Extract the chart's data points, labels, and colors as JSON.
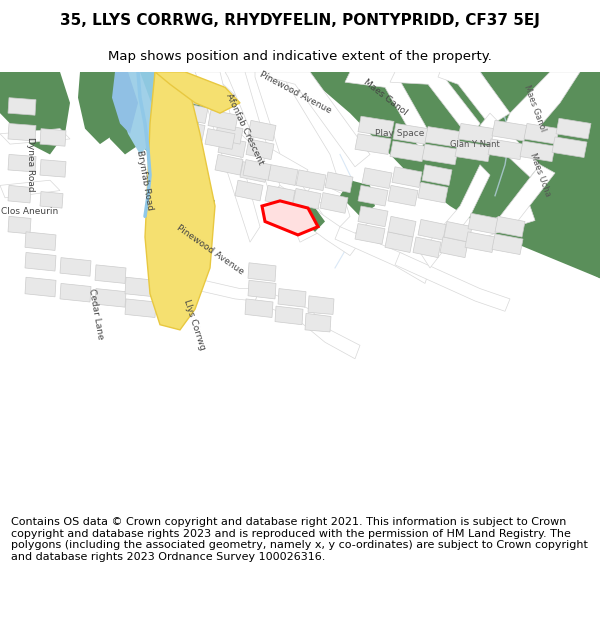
{
  "title": "35, LLYS CORRWG, RHYDYFELIN, PONTYPRIDD, CF37 5EJ",
  "subtitle": "Map shows position and indicative extent of the property.",
  "footer": "Contains OS data © Crown copyright and database right 2021. This information is subject to Crown copyright and database rights 2023 and is reproduced with the permission of HM Land Registry. The polygons (including the associated geometry, namely x, y co-ordinates) are subject to Crown copyright and database rights 2023 Ordnance Survey 100026316.",
  "bg_color": "#ffffff",
  "map_bg": "#ffffff",
  "road_color": "#ffffff",
  "building_color": "#e8e8e8",
  "building_edge": "#cccccc",
  "green_color": "#5a8f5a",
  "green_dark": "#4a7a4a",
  "highlight_red": "#ff0000",
  "highlight_fill": "#ffe0e0",
  "yellow_road": "#f5e070",
  "yellow_road_edge": "#e8c840",
  "blue_water": "#a8d0e8",
  "blue_stream": "#90c0e0",
  "road_edge": "#d8d8d8",
  "title_fontsize": 11,
  "subtitle_fontsize": 9.5,
  "footer_fontsize": 8.0,
  "figsize": [
    6.0,
    6.25
  ],
  "dpi": 100
}
